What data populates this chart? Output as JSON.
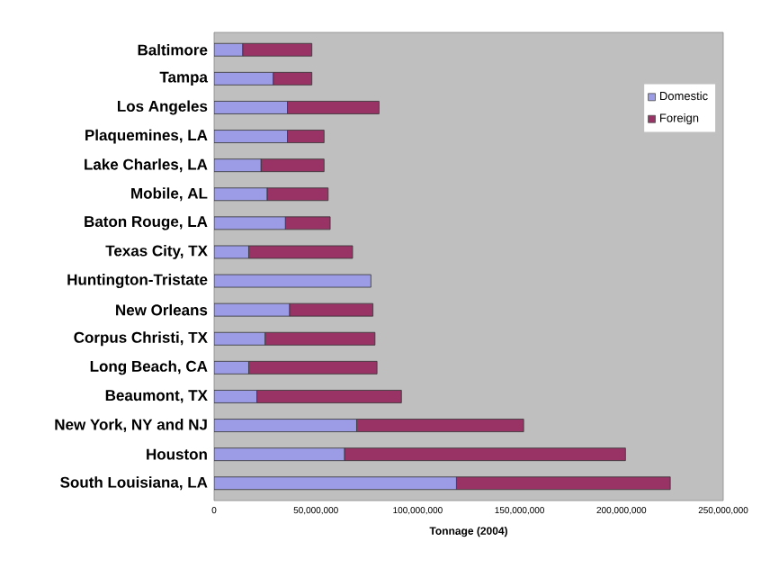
{
  "chart_data": {
    "type": "bar",
    "orientation": "horizontal",
    "stacked": true,
    "xlabel": "Tonnage (2004)",
    "categories": [
      "Baltimore",
      "Tampa",
      "Los Angeles",
      "Plaquemines, LA",
      "Lake Charles, LA",
      "Mobile, AL",
      "Baton Rouge, LA",
      "Texas City, TX",
      "Huntington-Tristate",
      "New Orleans",
      "Corpus Christi, TX",
      "Long Beach, CA",
      "Beaumont, TX",
      "New York, NY and NJ",
      "Houston",
      "South Louisiana, LA"
    ],
    "series": [
      {
        "name": "Domestic",
        "color": "#9c9ce6",
        "values": [
          14000000,
          29000000,
          36000000,
          36000000,
          23000000,
          26000000,
          35000000,
          17000000,
          77000000,
          37000000,
          25000000,
          17000000,
          21000000,
          70000000,
          64000000,
          119000000
        ]
      },
      {
        "name": "Foreign",
        "color": "#993366",
        "values": [
          34000000,
          19000000,
          45000000,
          18000000,
          31000000,
          30000000,
          22000000,
          51000000,
          0,
          41000000,
          54000000,
          63000000,
          71000000,
          82000000,
          138000000,
          105000000
        ]
      }
    ],
    "xlim": [
      0,
      250000000
    ],
    "xticks": [
      0,
      {
        "value": 50000000,
        "label": "50,000,000"
      },
      {
        "value": 100000000,
        "label": "100,000,000"
      },
      {
        "value": 150000000,
        "label": "150,000,000"
      },
      {
        "value": 200000000,
        "label": "200,000,000"
      },
      {
        "value": 250000000,
        "label": "250,000,000"
      }
    ],
    "grid": false,
    "legend": "right"
  }
}
